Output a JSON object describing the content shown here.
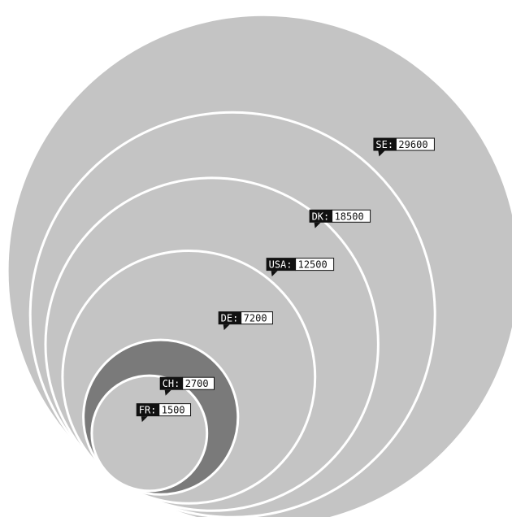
{
  "chart_data": {
    "type": "nested-bubble",
    "title": "",
    "series": [
      {
        "code": "SE",
        "label": "SE:",
        "value": 29600,
        "display": "29600"
      },
      {
        "code": "DK",
        "label": "DK:",
        "value": 18500,
        "display": "18500"
      },
      {
        "code": "USA",
        "label": "USA:",
        "value": 12500,
        "display": "12500"
      },
      {
        "code": "DE",
        "label": "DE:",
        "value": 7200,
        "display": "7200"
      },
      {
        "code": "CH",
        "label": "CH:",
        "value": 2700,
        "display": "2700"
      },
      {
        "code": "FR",
        "label": "FR:",
        "value": 1500,
        "display": "1500"
      }
    ],
    "colors": {
      "fill": "#c4c4c4",
      "highlight_fill": "#7a7a7a",
      "stroke": "#ffffff",
      "label_dark": "#111111",
      "label_light": "#ffffff"
    },
    "highlight": "CH"
  }
}
